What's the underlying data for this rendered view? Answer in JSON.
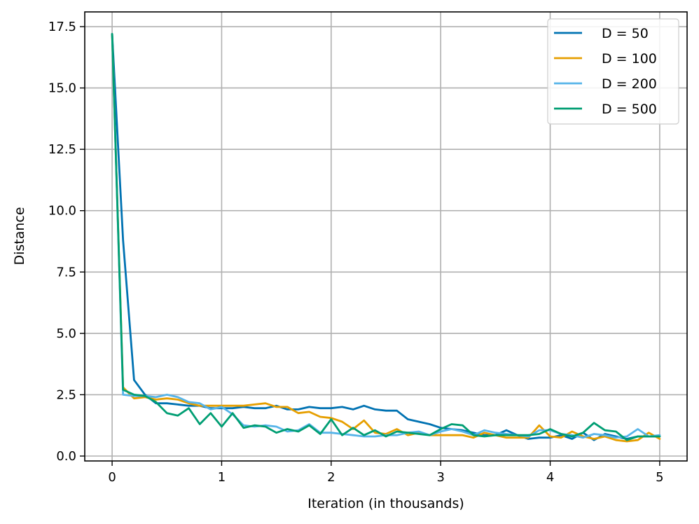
{
  "chart_data": {
    "type": "line",
    "title": "",
    "xlabel": "Iteration (in thousands)",
    "ylabel": "Distance",
    "xlim": [
      -0.25,
      5.25
    ],
    "ylim": [
      -0.2,
      18.1
    ],
    "grid": true,
    "legend_position": "top-right",
    "x_ticks": [
      0,
      1,
      2,
      3,
      4,
      5
    ],
    "x_tick_labels": [
      "0",
      "1",
      "2",
      "3",
      "4",
      "5"
    ],
    "y_ticks": [
      0,
      2.5,
      5,
      7.5,
      10,
      12.5,
      15,
      17.5
    ],
    "y_tick_labels": [
      "0.0",
      "2.5",
      "5.0",
      "7.5",
      "10.0",
      "12.5",
      "15.0",
      "17.5"
    ],
    "x": [
      0,
      0.1,
      0.2,
      0.3,
      0.4,
      0.5,
      0.6,
      0.7,
      0.8,
      0.9,
      1.0,
      1.1,
      1.2,
      1.3,
      1.4,
      1.5,
      1.6,
      1.7,
      1.8,
      1.9,
      2.0,
      2.1,
      2.2,
      2.3,
      2.4,
      2.5,
      2.6,
      2.7,
      2.8,
      2.9,
      3.0,
      3.1,
      3.2,
      3.3,
      3.4,
      3.5,
      3.6,
      3.7,
      3.8,
      3.9,
      4.0,
      4.1,
      4.2,
      4.3,
      4.4,
      4.5,
      4.6,
      4.7,
      4.8,
      4.9,
      5.0
    ],
    "series": [
      {
        "name": "D = 50",
        "color": "#0072b2",
        "values": [
          17.2,
          8.8,
          3.1,
          2.5,
          2.15,
          2.15,
          2.1,
          2.05,
          2.05,
          1.95,
          1.95,
          1.95,
          2.0,
          1.95,
          1.95,
          2.05,
          1.9,
          1.9,
          2.0,
          1.95,
          1.95,
          2.0,
          1.9,
          2.05,
          1.9,
          1.85,
          1.85,
          1.5,
          1.4,
          1.3,
          1.15,
          1.1,
          1.05,
          0.95,
          0.85,
          0.85,
          1.05,
          0.85,
          0.7,
          0.75,
          0.75,
          0.85,
          0.7,
          0.95,
          0.65,
          0.9,
          0.8,
          0.7,
          0.8,
          0.8,
          0.8
        ]
      },
      {
        "name": "D = 100",
        "color": "#e69f00",
        "values": [
          17.2,
          2.8,
          2.35,
          2.4,
          2.3,
          2.35,
          2.3,
          2.15,
          2.05,
          2.05,
          2.05,
          2.05,
          2.05,
          2.1,
          2.15,
          2.0,
          2.0,
          1.75,
          1.8,
          1.6,
          1.55,
          1.4,
          1.1,
          1.45,
          0.95,
          0.9,
          1.1,
          0.85,
          0.95,
          0.85,
          0.85,
          0.85,
          0.85,
          0.75,
          0.95,
          0.85,
          0.75,
          0.75,
          0.75,
          1.25,
          0.8,
          0.75,
          1.0,
          0.8,
          0.7,
          0.8,
          0.65,
          0.6,
          0.65,
          0.95,
          0.7
        ]
      },
      {
        "name": "D = 200",
        "color": "#56b4e9",
        "values": [
          17.2,
          2.5,
          2.45,
          2.45,
          2.4,
          2.5,
          2.4,
          2.2,
          2.15,
          1.9,
          2.0,
          1.7,
          1.25,
          1.2,
          1.25,
          1.2,
          1.0,
          1.05,
          1.3,
          0.95,
          0.95,
          0.9,
          0.85,
          0.8,
          0.8,
          0.85,
          0.85,
          0.95,
          1.0,
          0.85,
          1.0,
          1.1,
          1.0,
          0.85,
          1.05,
          0.95,
          0.9,
          0.85,
          0.8,
          1.05,
          1.05,
          0.9,
          0.85,
          0.75,
          0.9,
          0.85,
          0.75,
          0.8,
          1.1,
          0.8,
          0.85
        ]
      },
      {
        "name": "D = 500",
        "color": "#009e73",
        "values": [
          17.2,
          2.7,
          2.5,
          2.45,
          2.2,
          1.75,
          1.65,
          1.95,
          1.3,
          1.75,
          1.2,
          1.75,
          1.15,
          1.25,
          1.2,
          0.95,
          1.1,
          1.0,
          1.25,
          0.9,
          1.5,
          0.85,
          1.15,
          0.85,
          1.05,
          0.8,
          1.0,
          0.95,
          0.9,
          0.85,
          1.1,
          1.3,
          1.25,
          0.85,
          0.8,
          0.85,
          0.85,
          0.85,
          0.85,
          0.9,
          1.1,
          0.9,
          0.8,
          0.95,
          1.35,
          1.05,
          1.0,
          0.65,
          0.8,
          0.8,
          0.8
        ]
      }
    ]
  }
}
